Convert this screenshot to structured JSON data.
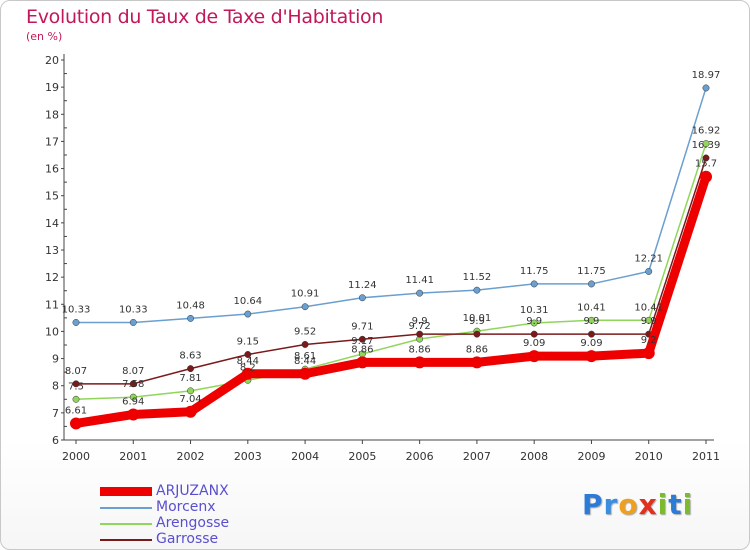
{
  "header": {
    "title": "Evolution du Taux de Taxe d'Habitation",
    "subtitle": "(en %)"
  },
  "logo": {
    "text": "Proxiti",
    "letters": [
      {
        "ch": "P",
        "color": "#2c7bd6"
      },
      {
        "ch": "r",
        "color": "#3a8ee0"
      },
      {
        "ch": "o",
        "color": "#f0a020"
      },
      {
        "ch": "x",
        "color": "#e0301e"
      },
      {
        "ch": "i",
        "color": "#7cbb2c"
      },
      {
        "ch": "t",
        "color": "#2c7bd6"
      },
      {
        "ch": "i",
        "color": "#7cbb2c"
      }
    ]
  },
  "chart_data": {
    "type": "line",
    "title": "Evolution du Taux de Taxe d'Habitation",
    "ylabel": "(en %)",
    "xlabel": "",
    "x": [
      "2000",
      "2001",
      "2002",
      "2003",
      "2004",
      "2005",
      "2006",
      "2007",
      "2008",
      "2009",
      "2010",
      "2011"
    ],
    "ylim": [
      6,
      20
    ],
    "yticks": [
      "6",
      "7",
      "8",
      "9",
      "10",
      "11",
      "12",
      "13",
      "14",
      "15",
      "16",
      "17",
      "18",
      "19",
      "20"
    ],
    "grid": false,
    "legend_position": "bottom-left",
    "series": [
      {
        "name": "ARJUZANX",
        "color": "#ee0000",
        "width": 9,
        "values": [
          6.61,
          6.94,
          7.04,
          8.44,
          8.44,
          8.86,
          8.86,
          8.86,
          9.09,
          9.09,
          9.2,
          15.7
        ],
        "labels": [
          "6.61",
          "6.94",
          "7.04",
          "8.44",
          "8.44",
          "8.86",
          "8.86",
          "8.86",
          "9.09",
          "9.09",
          "9.2",
          "15.7"
        ]
      },
      {
        "name": "Morcenx",
        "color": "#6a9fd0",
        "width": 1.5,
        "values": [
          10.33,
          10.33,
          10.48,
          10.64,
          10.91,
          11.24,
          11.41,
          11.52,
          11.75,
          11.75,
          12.21,
          18.97
        ],
        "labels": [
          "10.33",
          "10.33",
          "10.48",
          "10.64",
          "10.91",
          "11.24",
          "11.41",
          "11.52",
          "11.75",
          "11.75",
          "12.21",
          "18.97"
        ]
      },
      {
        "name": "Arengosse",
        "color": "#8fd65a",
        "width": 1.5,
        "values": [
          7.5,
          7.58,
          7.81,
          8.2,
          8.61,
          9.17,
          9.72,
          10.01,
          10.31,
          10.41,
          10.41,
          16.92
        ],
        "labels": [
          "7.5",
          "7.58",
          "7.81",
          "8.2",
          "8.61",
          "9.17",
          "9.72",
          "10.01",
          "10.31",
          "10.41",
          "10.41",
          "16.92"
        ]
      },
      {
        "name": "Garrosse",
        "color": "#7a1a1a",
        "width": 1.5,
        "values": [
          8.07,
          8.07,
          8.63,
          9.15,
          9.52,
          9.71,
          9.9,
          9.9,
          9.9,
          9.9,
          9.9,
          16.39
        ],
        "labels": [
          "8.07",
          "8.07",
          "8.63",
          "9.15",
          "9.52",
          "9.71",
          "9.9",
          "9.9",
          "9.9",
          "9.9",
          "9.9",
          "16.39"
        ]
      }
    ]
  }
}
